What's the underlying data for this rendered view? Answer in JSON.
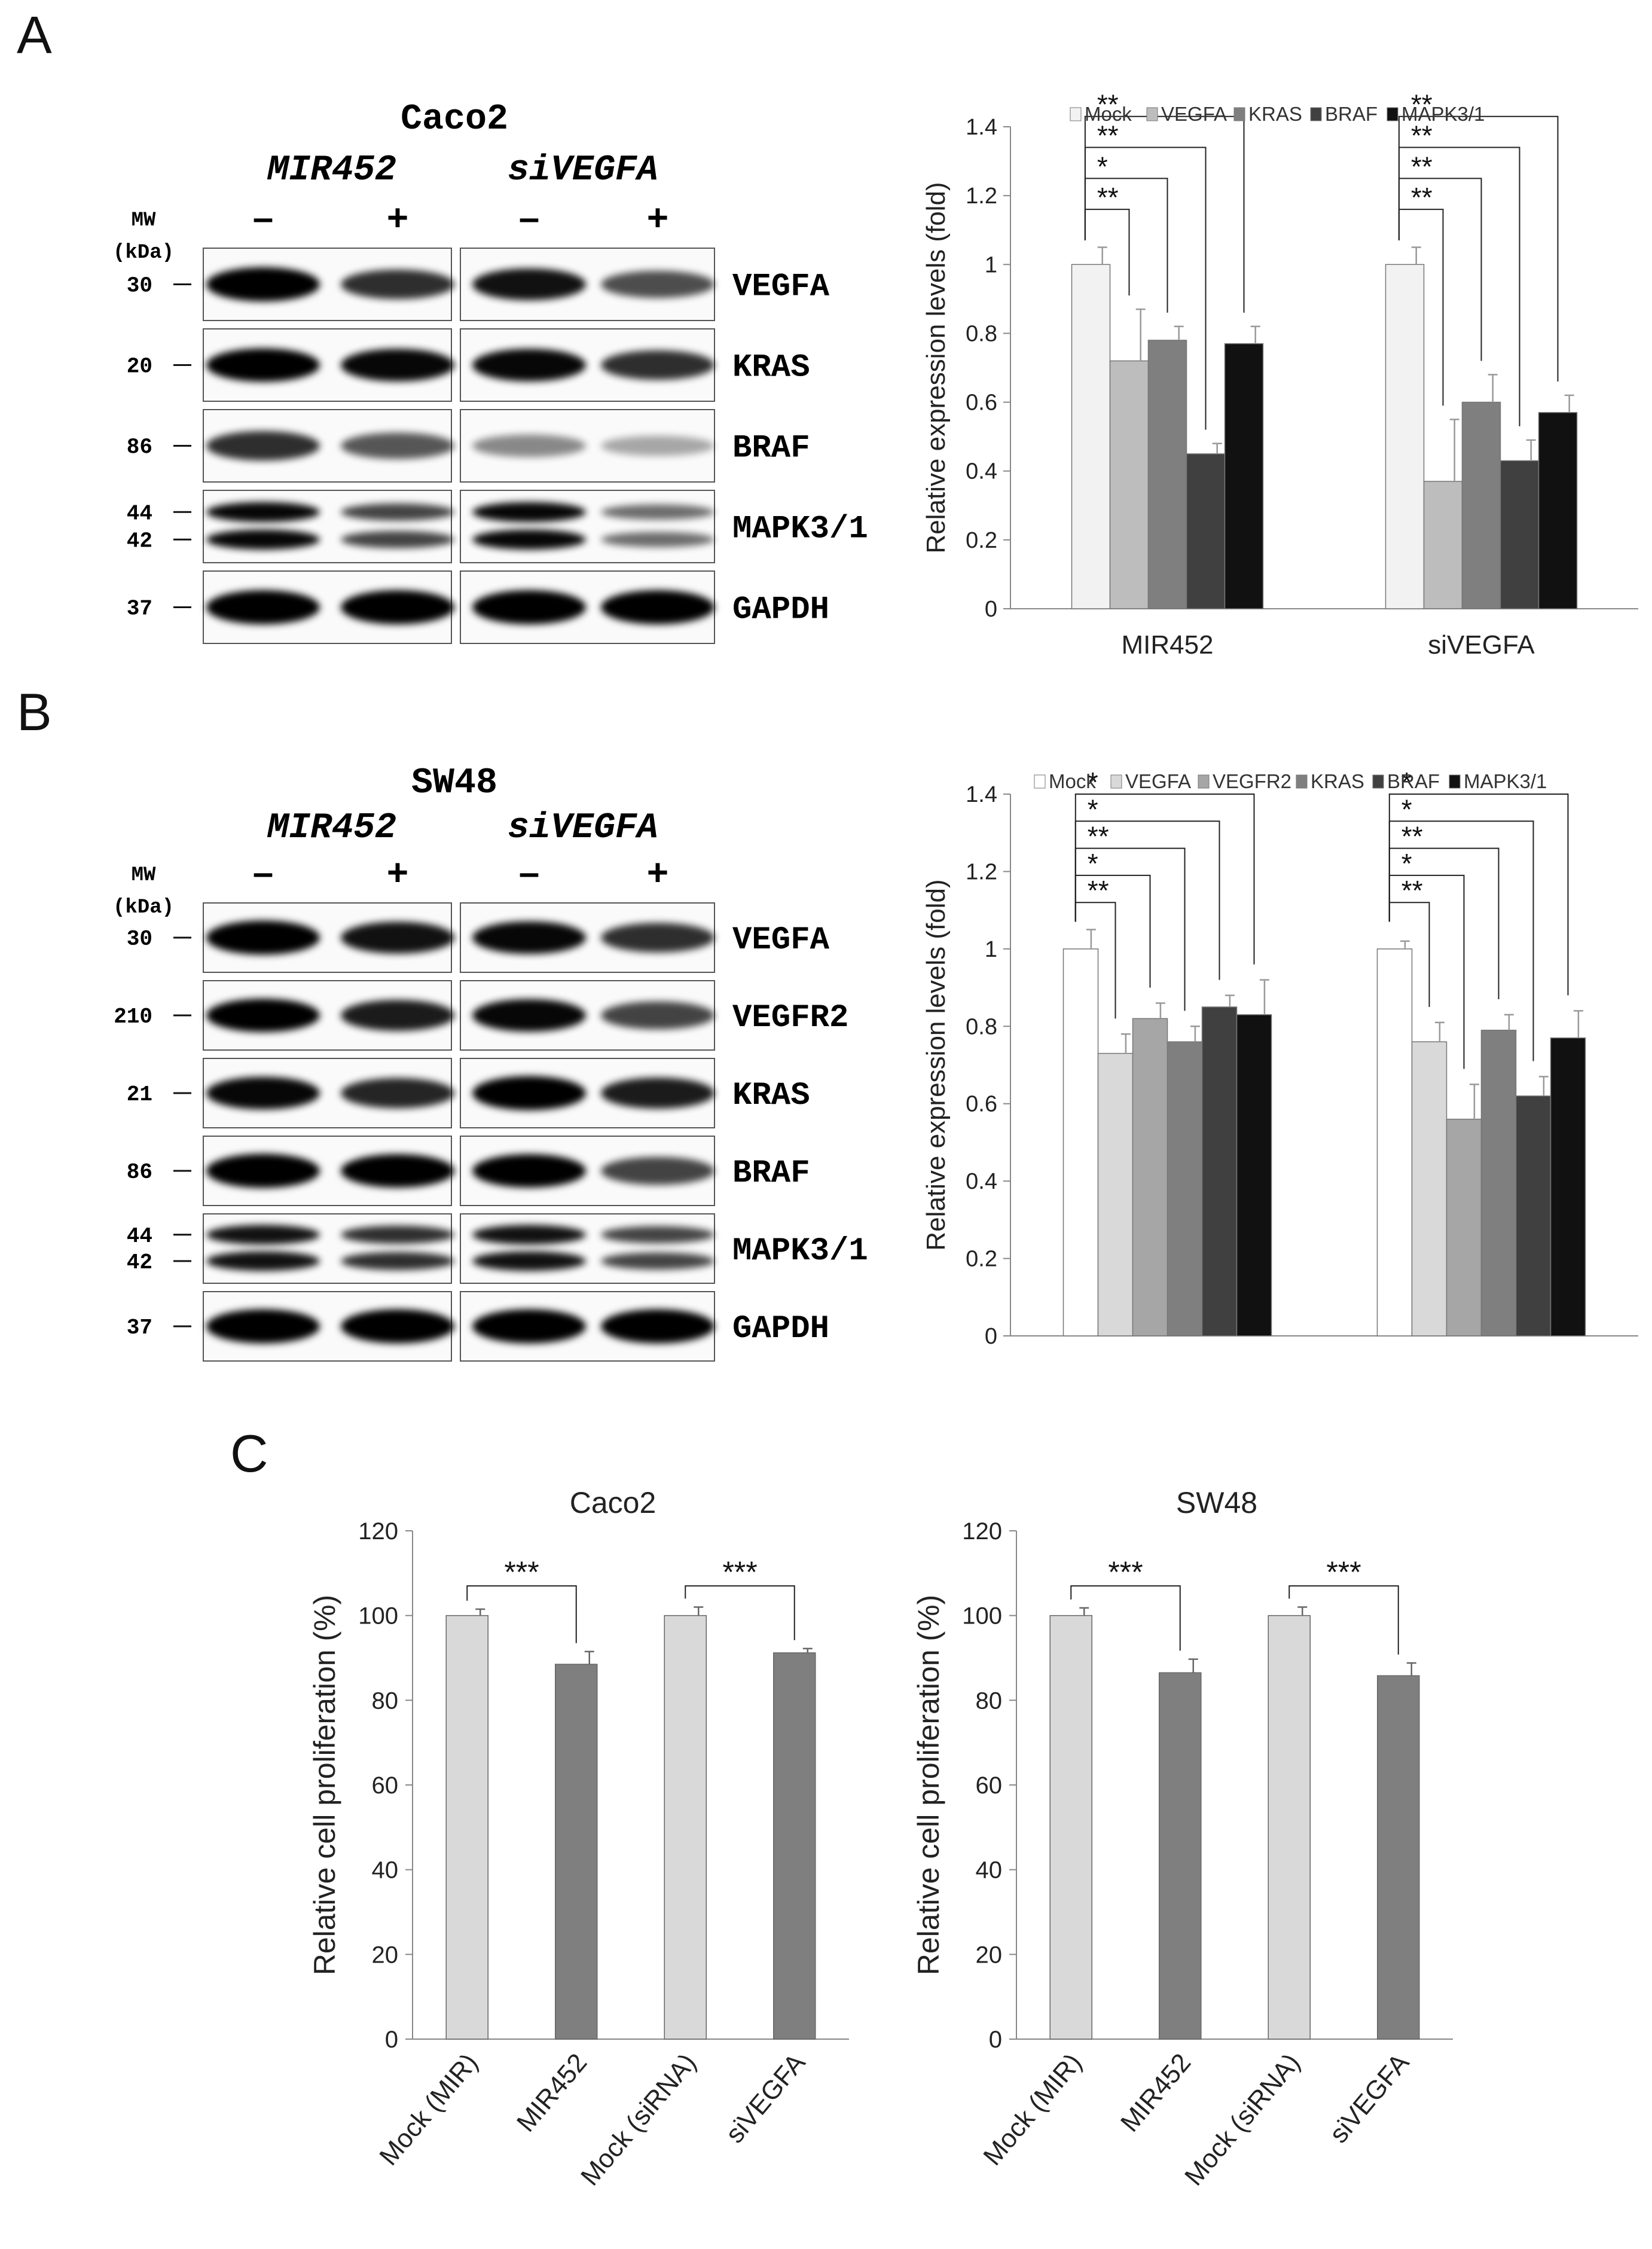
{
  "panels": {
    "a": "A",
    "b": "B",
    "c": "C"
  },
  "blot_a": {
    "cell_line": "Caco2",
    "groups": [
      "MIR452",
      "siVEGFA"
    ],
    "signs": [
      "–",
      "+",
      "–",
      "+"
    ],
    "mw_label_1": "MW",
    "mw_label_2": "(kDa)",
    "rows": [
      {
        "protein": "VEGFA",
        "mw": [
          "30"
        ]
      },
      {
        "protein": "KRAS",
        "mw": [
          "20"
        ]
      },
      {
        "protein": "BRAF",
        "mw": [
          "86"
        ]
      },
      {
        "protein": "MAPK3/1",
        "mw": [
          "44",
          "42"
        ]
      },
      {
        "protein": "GAPDH",
        "mw": [
          "37"
        ]
      }
    ]
  },
  "blot_b": {
    "cell_line": "SW48",
    "groups": [
      "MIR452",
      "siVEGFA"
    ],
    "signs": [
      "–",
      "+",
      "–",
      "+"
    ],
    "mw_label_1": "MW",
    "mw_label_2": "(kDa)",
    "rows": [
      {
        "protein": "VEGFA",
        "mw": [
          "30"
        ]
      },
      {
        "protein": "VEGFR2",
        "mw": [
          "210"
        ]
      },
      {
        "protein": "KRAS",
        "mw": [
          "21"
        ]
      },
      {
        "protein": "BRAF",
        "mw": [
          "86"
        ]
      },
      {
        "protein": "MAPK3/1",
        "mw": [
          "44",
          "42"
        ]
      },
      {
        "protein": "GAPDH",
        "mw": [
          "37"
        ]
      }
    ]
  },
  "chart_data": [
    {
      "type": "bar",
      "title": "",
      "xlabel": "",
      "ylabel": "Relative expression levels (fold)",
      "ylim": [
        0,
        1.4
      ],
      "yticks": [
        "0",
        "0.2",
        "0.4",
        "0.6",
        "0.8",
        "1",
        "1.2",
        "1.4"
      ],
      "categories": [
        "MIR452",
        "siVEGFA"
      ],
      "legend": "top",
      "series": [
        {
          "name": "Mock",
          "color": "#f2f2f2",
          "values": [
            1.0,
            1.0
          ],
          "errors": [
            0.05,
            0.05
          ]
        },
        {
          "name": "VEGFA",
          "color": "#bdbdbd",
          "values": [
            0.72,
            0.37
          ],
          "errors": [
            0.15,
            0.18
          ]
        },
        {
          "name": "KRAS",
          "color": "#7f7f7f",
          "values": [
            0.78,
            0.6
          ],
          "errors": [
            0.04,
            0.08
          ]
        },
        {
          "name": "BRAF",
          "color": "#404040",
          "values": [
            0.45,
            0.43
          ],
          "errors": [
            0.03,
            0.06
          ]
        },
        {
          "name": "MAPK3/1",
          "color": "#111111",
          "values": [
            0.77,
            0.57
          ],
          "errors": [
            0.05,
            0.05
          ]
        }
      ],
      "significance": [
        {
          "group": 0,
          "to": 1,
          "label": "**",
          "y": 1.16
        },
        {
          "group": 0,
          "to": 2,
          "label": "*",
          "y": 1.25
        },
        {
          "group": 0,
          "to": 3,
          "label": "**",
          "y": 1.34
        },
        {
          "group": 0,
          "to": 4,
          "label": "**",
          "y": 1.43
        },
        {
          "group": 1,
          "to": 1,
          "label": "**",
          "y": 1.16
        },
        {
          "group": 1,
          "to": 2,
          "label": "**",
          "y": 1.25
        },
        {
          "group": 1,
          "to": 3,
          "label": "**",
          "y": 1.34
        },
        {
          "group": 1,
          "to": 4,
          "label": "**",
          "y": 1.43
        }
      ]
    },
    {
      "type": "bar",
      "title": "",
      "xlabel": "",
      "ylabel": "Relative expression levels (fold)",
      "ylim": [
        0,
        1.4
      ],
      "yticks": [
        "0",
        "0.2",
        "0.4",
        "0.6",
        "0.8",
        "1",
        "1.2",
        "1.4"
      ],
      "categories": [
        "",
        ""
      ],
      "legend": "top",
      "series": [
        {
          "name": "Mock",
          "color": "#ffffff",
          "values": [
            1.0,
            1.0
          ],
          "errors": [
            0.05,
            0.02
          ]
        },
        {
          "name": "VEGFA",
          "color": "#d9d9d9",
          "values": [
            0.73,
            0.76
          ],
          "errors": [
            0.05,
            0.05
          ]
        },
        {
          "name": "VEGFR2",
          "color": "#a6a6a6",
          "values": [
            0.82,
            0.56
          ],
          "errors": [
            0.04,
            0.09
          ]
        },
        {
          "name": "KRAS",
          "color": "#7f7f7f",
          "values": [
            0.76,
            0.79
          ],
          "errors": [
            0.04,
            0.04
          ]
        },
        {
          "name": "BRAF",
          "color": "#404040",
          "values": [
            0.85,
            0.62
          ],
          "errors": [
            0.03,
            0.05
          ]
        },
        {
          "name": "MAPK3/1",
          "color": "#111111",
          "values": [
            0.83,
            0.77
          ],
          "errors": [
            0.09,
            0.07
          ]
        }
      ],
      "significance": [
        {
          "group": 0,
          "to": 1,
          "label": "**",
          "y": 1.12
        },
        {
          "group": 0,
          "to": 2,
          "label": "*",
          "y": 1.19
        },
        {
          "group": 0,
          "to": 3,
          "label": "**",
          "y": 1.26
        },
        {
          "group": 0,
          "to": 4,
          "label": "*",
          "y": 1.33
        },
        {
          "group": 0,
          "to": 5,
          "label": "*",
          "y": 1.4
        },
        {
          "group": 1,
          "to": 1,
          "label": "**",
          "y": 1.12
        },
        {
          "group": 1,
          "to": 2,
          "label": "*",
          "y": 1.19
        },
        {
          "group": 1,
          "to": 3,
          "label": "**",
          "y": 1.26
        },
        {
          "group": 1,
          "to": 4,
          "label": "*",
          "y": 1.33
        },
        {
          "group": 1,
          "to": 5,
          "label": "*",
          "y": 1.4
        }
      ]
    },
    {
      "type": "bar",
      "title": "Caco2",
      "xlabel": "",
      "ylabel": "Relative cell proliferation (%)",
      "ylim": [
        0,
        120
      ],
      "yticks": [
        "0",
        "20",
        "40",
        "60",
        "80",
        "100",
        "120"
      ],
      "categories": [
        "Mock (MIR)",
        "MIR452",
        "Mock (siRNA)",
        "siVEGFA"
      ],
      "values": [
        100,
        88.5,
        100,
        91.2
      ],
      "errors": [
        1.5,
        3.0,
        2.0,
        1.0
      ],
      "colors": [
        "#d9d9d9",
        "#7f7f7f",
        "#d9d9d9",
        "#7f7f7f"
      ],
      "significance": [
        {
          "from": 0,
          "to": 1,
          "label": "***",
          "y": 107
        },
        {
          "from": 2,
          "to": 3,
          "label": "***",
          "y": 107
        }
      ]
    },
    {
      "type": "bar",
      "title": "SW48",
      "xlabel": "",
      "ylabel": "Relative cell proliferation (%)",
      "ylim": [
        0,
        120
      ],
      "yticks": [
        "0",
        "20",
        "40",
        "60",
        "80",
        "100",
        "120"
      ],
      "categories": [
        "Mock (MIR)",
        "MIR452",
        "Mock (siRNA)",
        "siVEGFA"
      ],
      "values": [
        100,
        86.5,
        100,
        85.8
      ],
      "errors": [
        1.8,
        3.2,
        2.0,
        3.0
      ],
      "colors": [
        "#d9d9d9",
        "#7f7f7f",
        "#d9d9d9",
        "#7f7f7f"
      ],
      "significance": [
        {
          "from": 0,
          "to": 1,
          "label": "***",
          "y": 107
        },
        {
          "from": 2,
          "to": 3,
          "label": "***",
          "y": 107
        }
      ]
    }
  ]
}
